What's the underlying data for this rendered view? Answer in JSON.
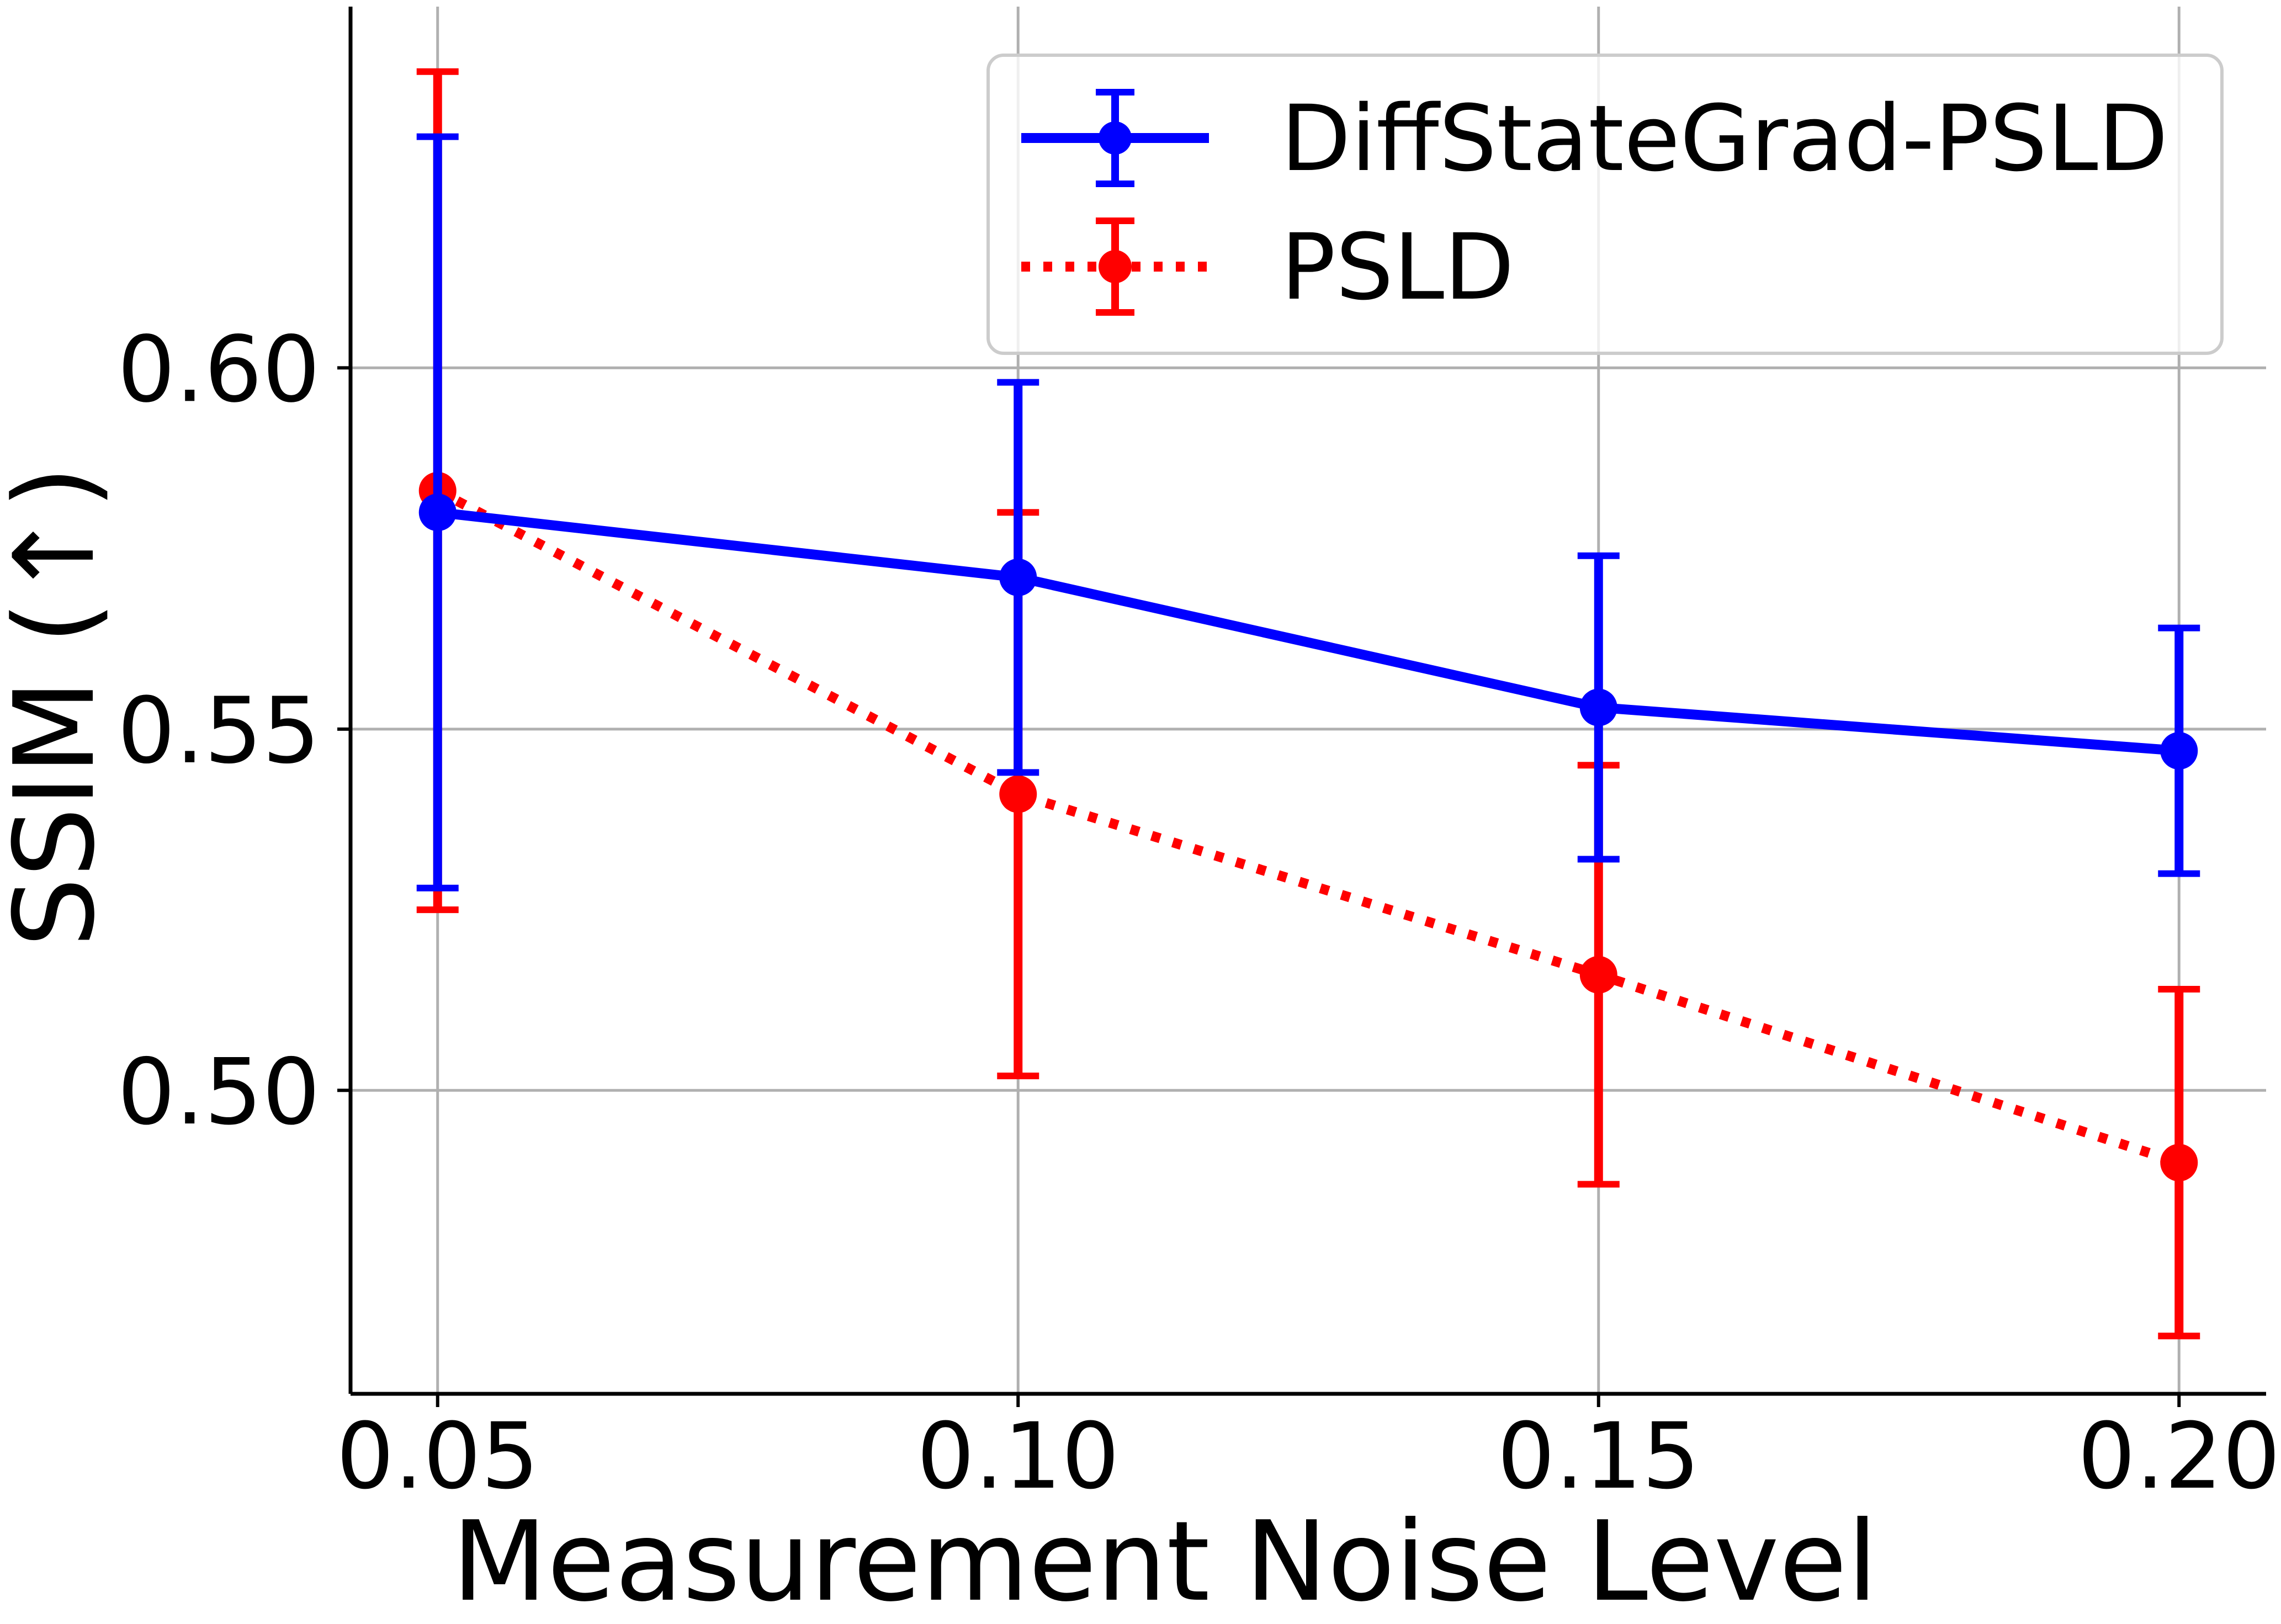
{
  "chart_data": {
    "type": "line",
    "title": "",
    "xlabel": "Measurement Noise Level",
    "ylabel": "SSIM (↑)",
    "x": [
      0.05,
      0.1,
      0.15,
      0.2
    ],
    "x_tick_labels": [
      "0.05",
      "0.10",
      "0.15",
      "0.20"
    ],
    "y_ticks": [
      0.5,
      0.55,
      0.6
    ],
    "y_tick_labels": [
      "0.50",
      "0.55",
      "0.60"
    ],
    "xlim": [
      0.0425,
      0.2075
    ],
    "ylim": [
      0.458,
      0.65
    ],
    "grid": true,
    "legend_position": "top-right",
    "series": [
      {
        "name": "DiffStateGrad-PSLD",
        "color": "#0000ff",
        "line_style": "solid",
        "values": [
          0.58,
          0.571,
          0.553,
          0.547
        ],
        "errors": [
          0.052,
          0.027,
          0.021,
          0.017
        ]
      },
      {
        "name": "PSLD",
        "color": "#ff0000",
        "line_style": "dotted",
        "values": [
          0.583,
          0.541,
          0.516,
          0.49
        ],
        "errors": [
          0.058,
          0.039,
          0.029,
          0.024
        ]
      }
    ]
  }
}
